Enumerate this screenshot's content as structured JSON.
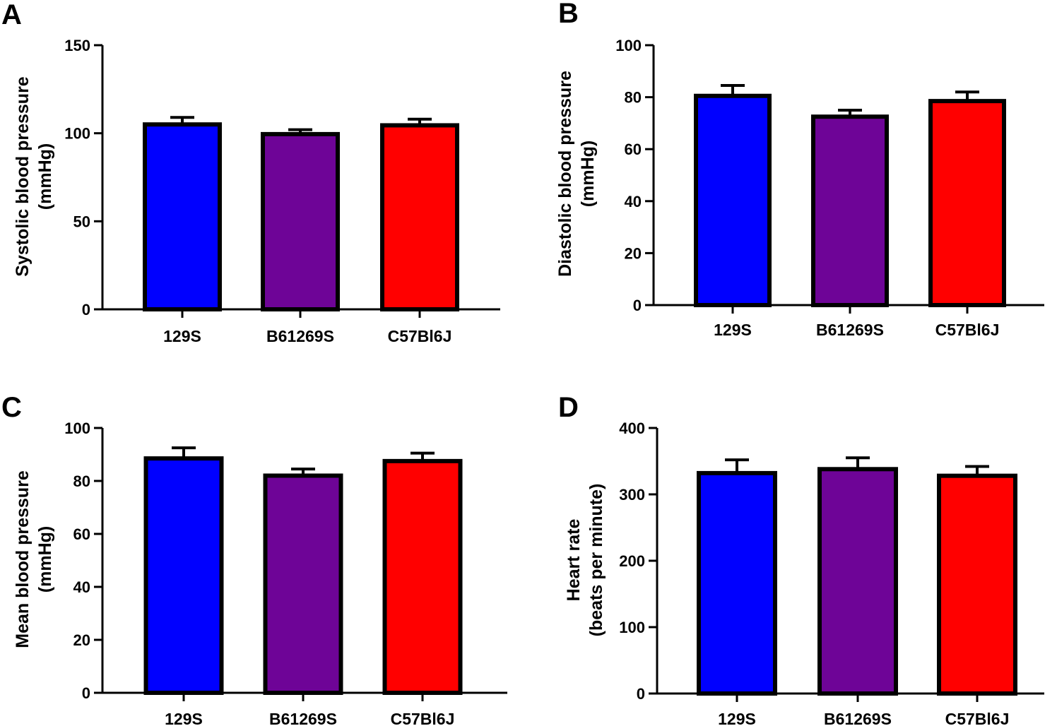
{
  "chart_data": [
    {
      "panel": "A",
      "type": "bar",
      "categories": [
        "129S",
        "B61269S",
        "C57Bl6J"
      ],
      "values": [
        105,
        99.5,
        104.5
      ],
      "errors": [
        4,
        2.5,
        3.5
      ],
      "ylabel": [
        "Systolic  blood pressure",
        "(mmHg)"
      ],
      "xlabel": "",
      "ylim": [
        0,
        150
      ],
      "yticks": [
        0,
        50,
        100,
        150
      ],
      "colors": [
        "#0000ff",
        "#6e0497",
        "#ff0000"
      ],
      "grid": false
    },
    {
      "panel": "B",
      "type": "bar",
      "categories": [
        "129S",
        "B61269S",
        "C57Bl6J"
      ],
      "values": [
        80.5,
        72.5,
        78.5
      ],
      "errors": [
        4,
        2.5,
        3.5
      ],
      "ylabel": [
        "Diastolic blood pressure",
        "(mmHg)"
      ],
      "xlabel": "",
      "ylim": [
        0,
        100
      ],
      "yticks": [
        0,
        20,
        40,
        60,
        80,
        100
      ],
      "colors": [
        "#0000ff",
        "#6e0497",
        "#ff0000"
      ],
      "grid": false
    },
    {
      "panel": "C",
      "type": "bar",
      "categories": [
        "129S",
        "B61269S",
        "C57Bl6J"
      ],
      "values": [
        88.5,
        82,
        87.5
      ],
      "errors": [
        4,
        2.5,
        3
      ],
      "ylabel": [
        "Mean blood pressure",
        "(mmHg)"
      ],
      "xlabel": "",
      "ylim": [
        0,
        100
      ],
      "yticks": [
        0,
        20,
        40,
        60,
        80,
        100
      ],
      "colors": [
        "#0000ff",
        "#6e0497",
        "#ff0000"
      ],
      "grid": false
    },
    {
      "panel": "D",
      "type": "bar",
      "categories": [
        "129S",
        "B61269S",
        "C57Bl6J"
      ],
      "values": [
        332,
        338,
        328
      ],
      "errors": [
        20,
        17,
        14
      ],
      "ylabel": [
        "Heart  rate",
        "(beats per minute)"
      ],
      "xlabel": "",
      "ylim": [
        0,
        400
      ],
      "yticks": [
        0,
        100,
        200,
        300,
        400
      ],
      "colors": [
        "#0000ff",
        "#6e0497",
        "#ff0000"
      ],
      "grid": false
    }
  ]
}
